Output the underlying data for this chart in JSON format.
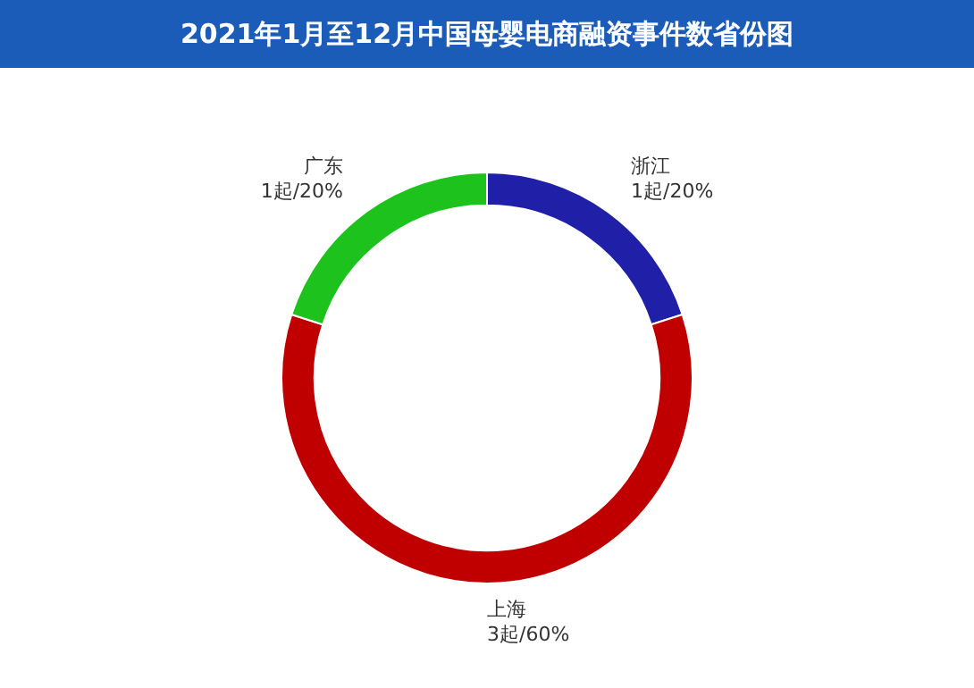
{
  "chart_data": {
    "type": "donut",
    "title": "2021年1月至12月中国母婴电商融资事件数省份图",
    "categories": [
      "浙江",
      "上海",
      "广东"
    ],
    "values": [
      1,
      3,
      1
    ],
    "value_labels": [
      "1起/20%",
      "3起/60%",
      "1起/20%"
    ],
    "colors": [
      "#1f1fa8",
      "#c00000",
      "#1dc21d"
    ],
    "legend": false
  }
}
